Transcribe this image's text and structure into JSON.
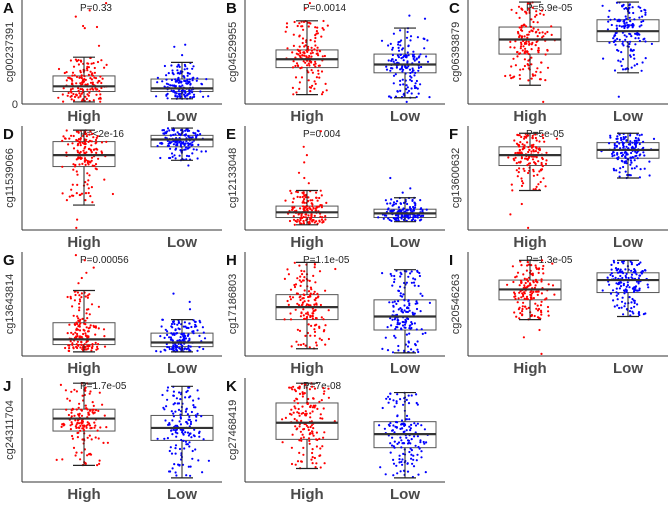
{
  "chart_data": {
    "type": "boxplot",
    "title": "",
    "groups": [
      "High",
      "Low"
    ],
    "colors": {
      "High": "#ff0000",
      "Low": "#0000ff",
      "box": "#555555"
    },
    "value_scale": "relative (0-100 of axis range, no tick labels shown)",
    "points_per_group": 150,
    "panels": [
      {
        "letter": "A",
        "ylabel": "cg00237391",
        "pvalue": "P=0.33",
        "ytick": "0",
        "High": {
          "wmin": 2,
          "q1": 12,
          "median": 17,
          "q3": 27,
          "wmax": 45,
          "outliers": [
            97,
            90,
            84,
            75,
            74,
            73,
            56
          ]
        },
        "Low": {
          "wmin": 5,
          "q1": 12,
          "median": 15,
          "q3": 24,
          "wmax": 40,
          "outliers": [
            57,
            55,
            47
          ]
        }
      },
      {
        "letter": "B",
        "ylabel": "cg04529955",
        "pvalue": "P=0.0014",
        "High": {
          "wmin": 9,
          "q1": 35,
          "median": 43,
          "q3": 52,
          "wmax": 80,
          "outliers": [
            97,
            92
          ]
        },
        "Low": {
          "wmin": 6,
          "q1": 30,
          "median": 38,
          "q3": 48,
          "wmax": 73,
          "outliers": [
            2,
            85,
            82
          ]
        }
      },
      {
        "letter": "C",
        "ylabel": "cg06393879",
        "pvalue": "P=5.9e-05",
        "High": {
          "wmin": 18,
          "q1": 48,
          "median": 62,
          "q3": 74,
          "wmax": 98,
          "outliers": [
            2
          ]
        },
        "Low": {
          "wmin": 30,
          "q1": 60,
          "median": 70,
          "q3": 81,
          "wmax": 98,
          "outliers": [
            7
          ]
        }
      },
      {
        "letter": "D",
        "ylabel": "cg11539066",
        "pvalue": "P=<2e-16",
        "High": {
          "wmin": 24,
          "q1": 61,
          "median": 72,
          "q3": 85,
          "wmax": 96,
          "outliers": [
            2,
            10
          ]
        },
        "Low": {
          "wmin": 67,
          "q1": 80,
          "median": 87,
          "q3": 91,
          "wmax": 98,
          "outliers": [
            62
          ]
        }
      },
      {
        "letter": "E",
        "ylabel": "cg12133048",
        "pvalue": "P=0.004",
        "High": {
          "wmin": 5,
          "q1": 12,
          "median": 17,
          "q3": 23,
          "wmax": 38,
          "outliers": [
            95,
            80,
            72,
            65,
            55,
            50,
            45
          ]
        },
        "Low": {
          "wmin": 8,
          "q1": 12,
          "median": 16,
          "q3": 20,
          "wmax": 31,
          "outliers": [
            50,
            40,
            36
          ]
        }
      },
      {
        "letter": "F",
        "ylabel": "cg13600632",
        "pvalue": "P=5e-05",
        "High": {
          "wmin": 38,
          "q1": 62,
          "median": 72,
          "q3": 80,
          "wmax": 93,
          "outliers": [
            2,
            15,
            25
          ]
        },
        "Low": {
          "wmin": 50,
          "q1": 69,
          "median": 77,
          "q3": 84,
          "wmax": 93,
          "outliers": []
        }
      },
      {
        "letter": "G",
        "ylabel": "cg13643814",
        "pvalue": "P=0.00056",
        "High": {
          "wmin": 4,
          "q1": 11,
          "median": 16,
          "q3": 32,
          "wmax": 63,
          "outliers": [
            97,
            92,
            85,
            80,
            75,
            70
          ]
        },
        "Low": {
          "wmin": 4,
          "q1": 9,
          "median": 13,
          "q3": 22,
          "wmax": 35,
          "outliers": [
            60,
            52,
            45
          ]
        }
      },
      {
        "letter": "H",
        "ylabel": "cg17186803",
        "pvalue": "P=1.1e-05",
        "High": {
          "wmin": 7,
          "q1": 35,
          "median": 47,
          "q3": 59,
          "wmax": 90,
          "outliers": []
        },
        "Low": {
          "wmin": 3,
          "q1": 25,
          "median": 38,
          "q3": 54,
          "wmax": 83,
          "outliers": []
        }
      },
      {
        "letter": "I",
        "ylabel": "cg20546263",
        "pvalue": "P=1.3e-05",
        "High": {
          "wmin": 35,
          "q1": 54,
          "median": 64,
          "q3": 73,
          "wmax": 92,
          "outliers": [
            2,
            18,
            25
          ]
        },
        "Low": {
          "wmin": 38,
          "q1": 61,
          "median": 73,
          "q3": 80,
          "wmax": 92,
          "outliers": []
        }
      },
      {
        "letter": "J",
        "ylabel": "cg24311704",
        "pvalue": "P=1.7e-05",
        "High": {
          "wmin": 16,
          "q1": 49,
          "median": 61,
          "q3": 70,
          "wmax": 95,
          "outliers": []
        },
        "Low": {
          "wmin": 4,
          "q1": 40,
          "median": 52,
          "q3": 64,
          "wmax": 92,
          "outliers": []
        }
      },
      {
        "letter": "K",
        "ylabel": "cg27468419",
        "pvalue": "P=7e-08",
        "High": {
          "wmin": 13,
          "q1": 41,
          "median": 57,
          "q3": 76,
          "wmax": 95,
          "outliers": []
        },
        "Low": {
          "wmin": 4,
          "q1": 33,
          "median": 46,
          "q3": 58,
          "wmax": 86,
          "outliers": []
        }
      }
    ]
  }
}
